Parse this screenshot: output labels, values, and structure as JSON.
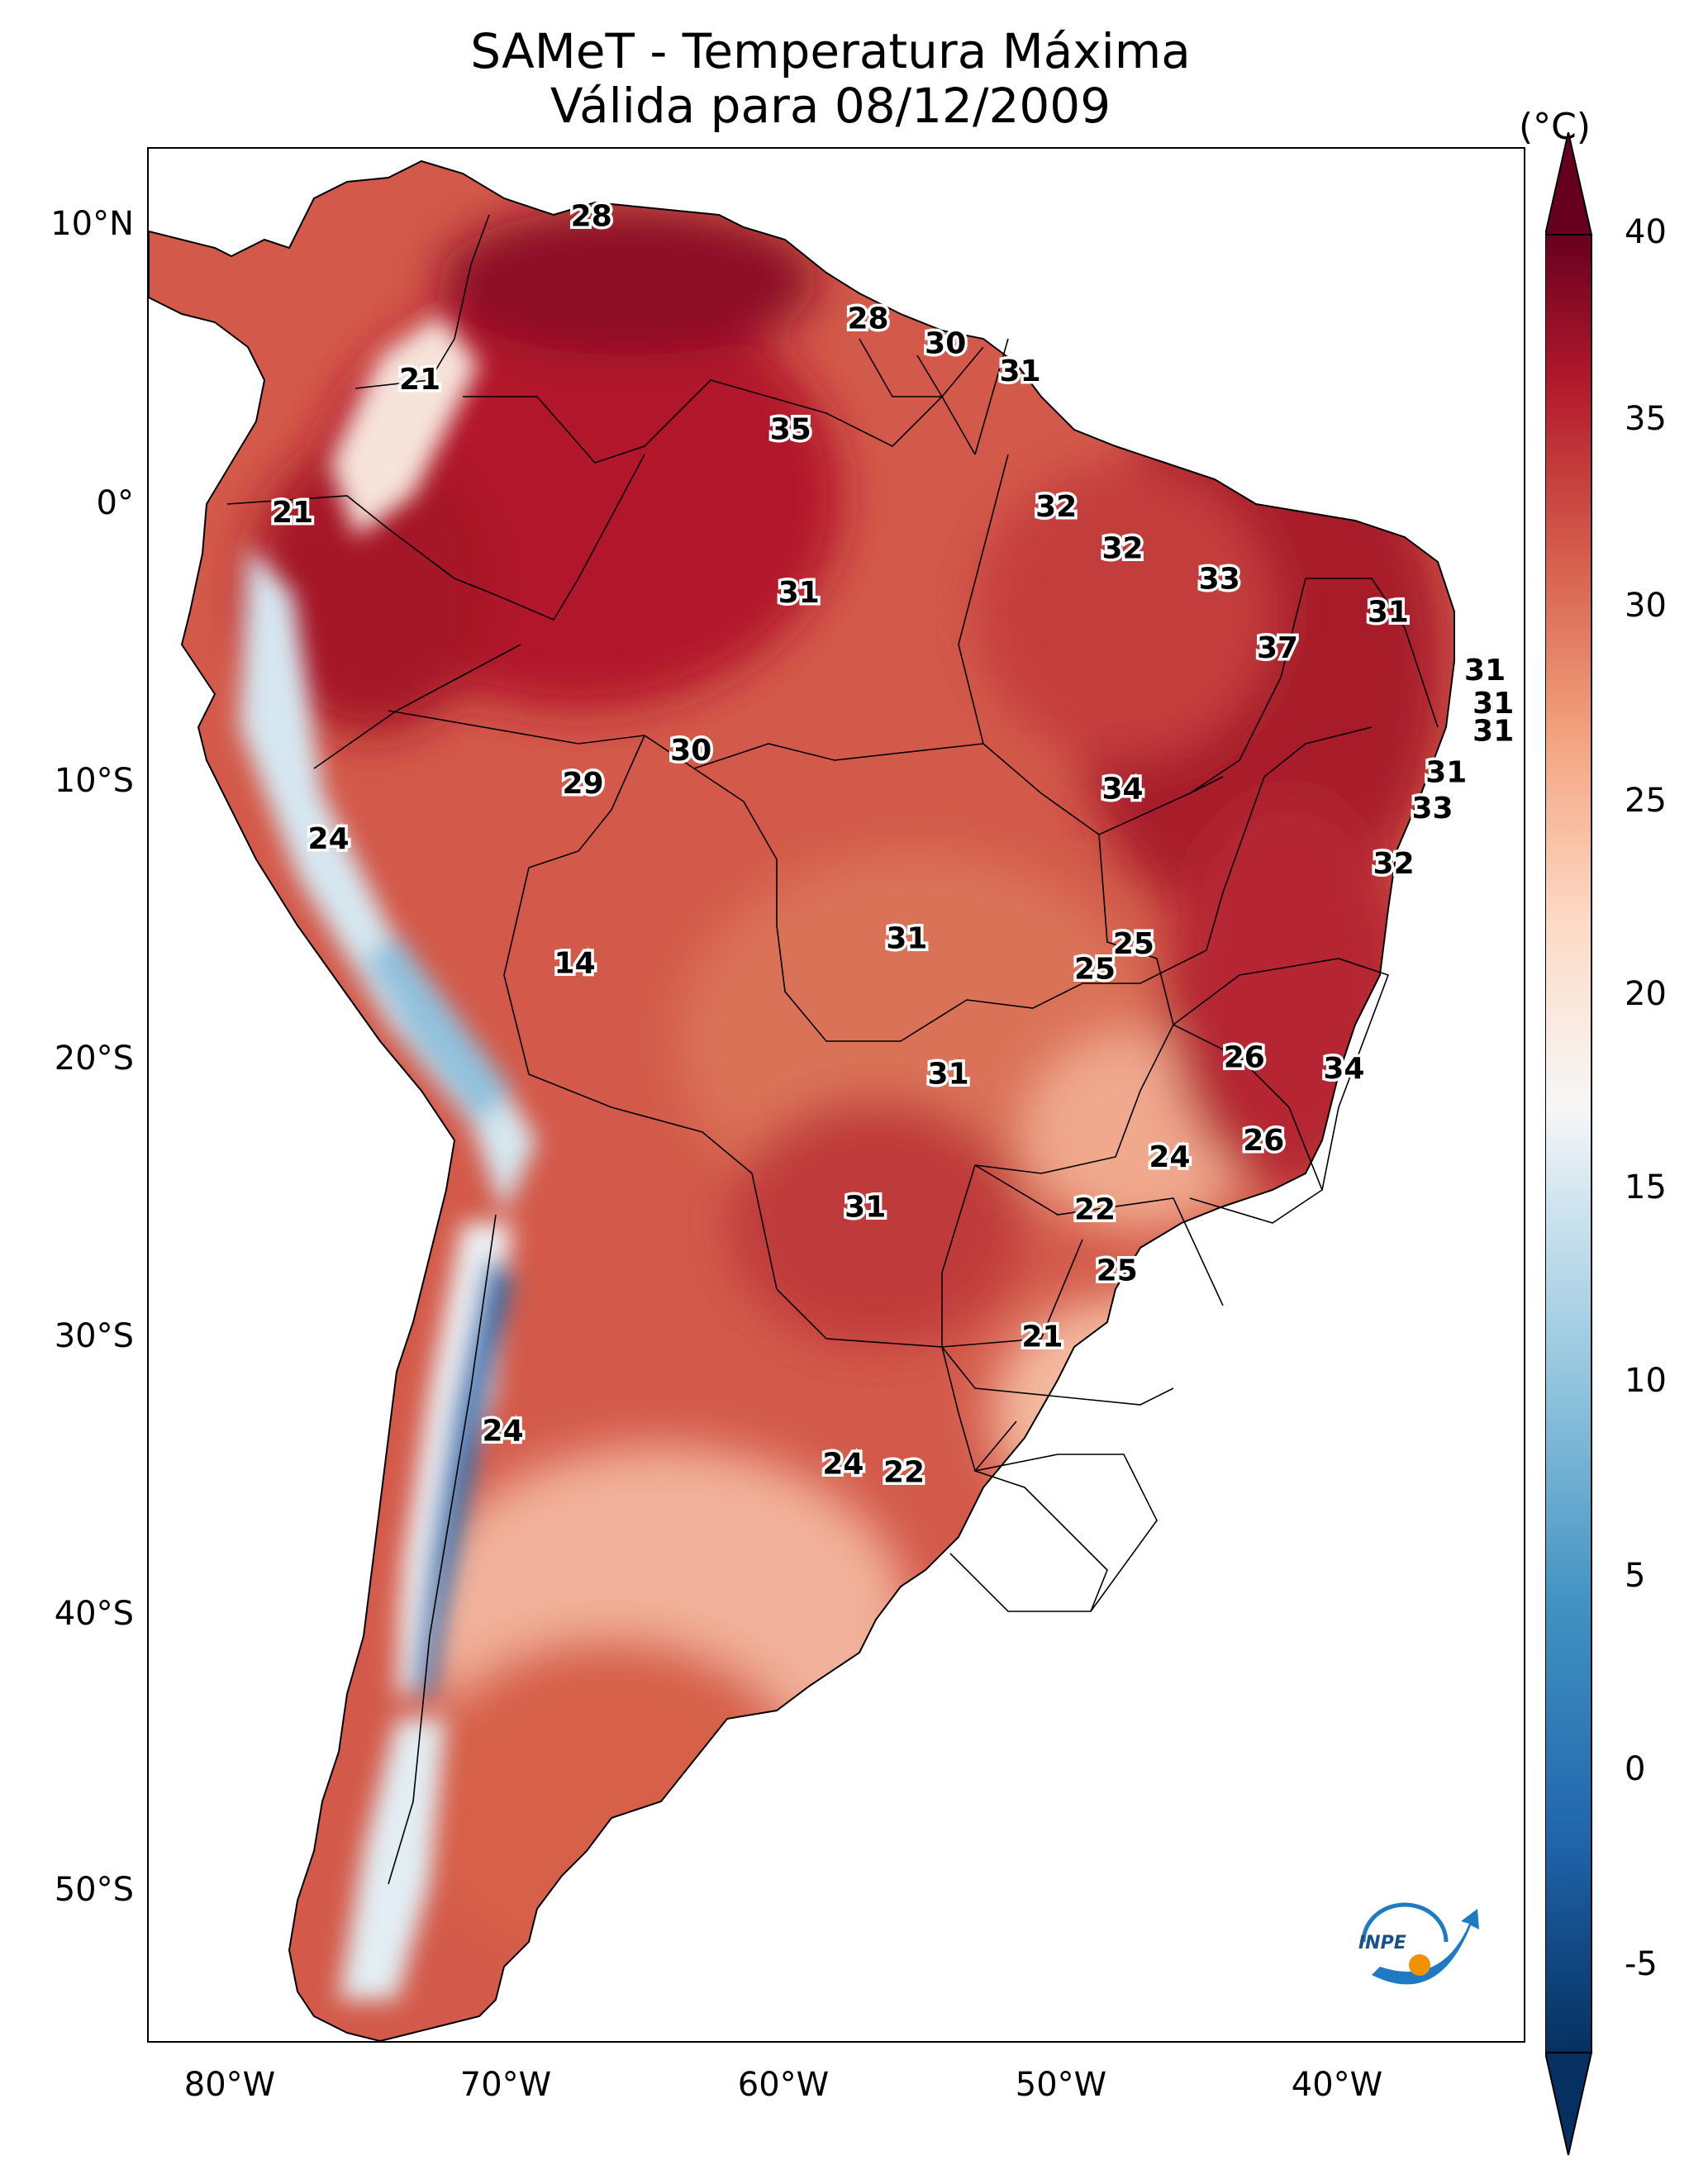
{
  "title_line1": "SAMeT - Temperatura Máxima",
  "title_line2": "Válida para 08/12/2009",
  "colorbar": {
    "unit": "(°C)",
    "ticks": [
      "40",
      "35",
      "30",
      "25",
      "20",
      "15",
      "10",
      "5",
      "0",
      "-5"
    ],
    "min": -5,
    "max": 40,
    "colors": {
      "cold": "#053061",
      "mid": "#f7f7f7",
      "hot": "#67001f"
    }
  },
  "axes": {
    "lat_labels": [
      "10°N",
      "0°",
      "10°S",
      "20°S",
      "30°S",
      "40°S",
      "50°S"
    ],
    "lon_labels": [
      "80°W",
      "70°W",
      "60°W",
      "50°W",
      "40°W"
    ]
  },
  "stations": [
    {
      "label": "28",
      "lon": -67.5,
      "lat": 10.5
    },
    {
      "label": "28",
      "lon": -57.5,
      "lat": 6.8
    },
    {
      "label": "30",
      "lon": -54.7,
      "lat": 5.9
    },
    {
      "label": "31",
      "lon": -52.0,
      "lat": 4.9
    },
    {
      "label": "21",
      "lon": -73.7,
      "lat": 4.6
    },
    {
      "label": "35",
      "lon": -60.3,
      "lat": 2.8
    },
    {
      "label": "21",
      "lon": -78.3,
      "lat": -0.2
    },
    {
      "label": "32",
      "lon": -50.7,
      "lat": 0.0
    },
    {
      "label": "32",
      "lon": -48.3,
      "lat": -1.5
    },
    {
      "label": "31",
      "lon": -60.0,
      "lat": -3.1
    },
    {
      "label": "33",
      "lon": -44.8,
      "lat": -2.6
    },
    {
      "label": "31",
      "lon": -38.7,
      "lat": -3.8
    },
    {
      "label": "37",
      "lon": -42.7,
      "lat": -5.1
    },
    {
      "label": "31",
      "lon": -35.2,
      "lat": -5.9
    },
    {
      "label": "31",
      "lon": -34.9,
      "lat": -7.1
    },
    {
      "label": "31",
      "lon": -34.9,
      "lat": -8.1
    },
    {
      "label": "30",
      "lon": -63.9,
      "lat": -8.8
    },
    {
      "label": "29",
      "lon": -67.8,
      "lat": -10.0
    },
    {
      "label": "34",
      "lon": -48.3,
      "lat": -10.2
    },
    {
      "label": "31",
      "lon": -36.6,
      "lat": -9.6
    },
    {
      "label": "33",
      "lon": -37.1,
      "lat": -10.9
    },
    {
      "label": "24",
      "lon": -77.0,
      "lat": -12.0
    },
    {
      "label": "32",
      "lon": -38.5,
      "lat": -12.9
    },
    {
      "label": "31",
      "lon": -56.1,
      "lat": -15.6
    },
    {
      "label": "25",
      "lon": -47.9,
      "lat": -15.8
    },
    {
      "label": "25",
      "lon": -49.3,
      "lat": -16.7
    },
    {
      "label": "14",
      "lon": -68.1,
      "lat": -16.5
    },
    {
      "label": "26",
      "lon": -43.9,
      "lat": -19.9
    },
    {
      "label": "34",
      "lon": -40.3,
      "lat": -20.3
    },
    {
      "label": "31",
      "lon": -54.6,
      "lat": -20.5
    },
    {
      "label": "26",
      "lon": -43.2,
      "lat": -22.9
    },
    {
      "label": "24",
      "lon": -46.6,
      "lat": -23.5
    },
    {
      "label": "31",
      "lon": -57.6,
      "lat": -25.3
    },
    {
      "label": "22",
      "lon": -49.3,
      "lat": -25.4
    },
    {
      "label": "25",
      "lon": -48.5,
      "lat": -27.6
    },
    {
      "label": "21",
      "lon": -51.2,
      "lat": -30.0
    },
    {
      "label": "24",
      "lon": -70.7,
      "lat": -33.4
    },
    {
      "label": "24",
      "lon": -58.4,
      "lat": -34.6
    },
    {
      "label": "22",
      "lon": -56.2,
      "lat": -34.9
    }
  ]
}
